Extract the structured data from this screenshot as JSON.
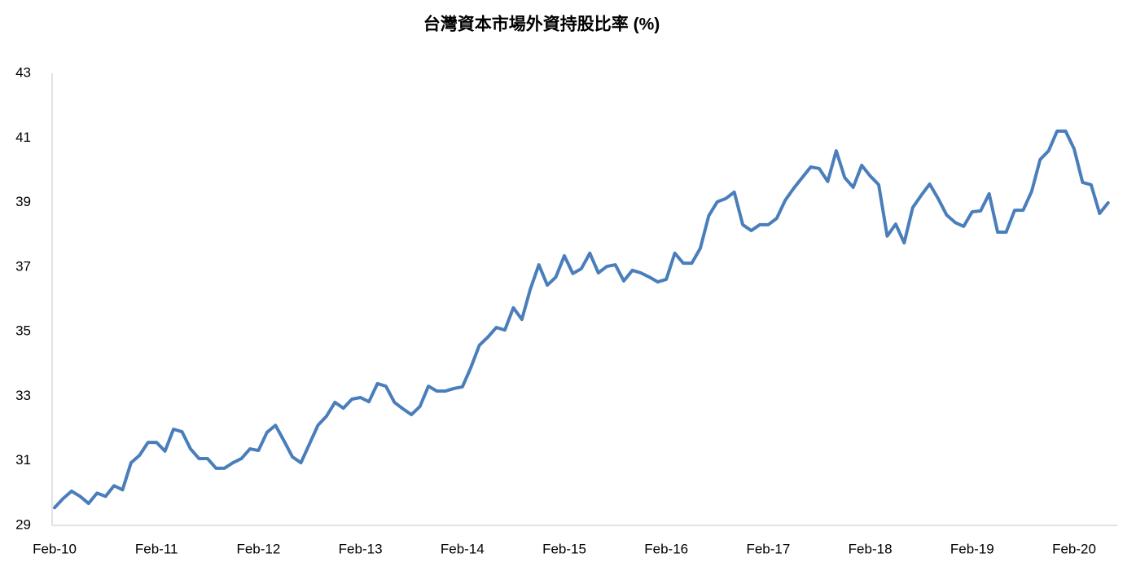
{
  "chart_data": {
    "type": "line",
    "title": "台灣資本市場外資持股比率 (%)",
    "categories": [
      "Feb-10",
      null,
      null,
      null,
      null,
      null,
      null,
      null,
      null,
      null,
      null,
      null,
      "Feb-11",
      null,
      null,
      null,
      null,
      null,
      null,
      null,
      null,
      null,
      null,
      null,
      "Feb-12",
      null,
      null,
      null,
      null,
      null,
      null,
      null,
      null,
      null,
      null,
      null,
      "Feb-13",
      null,
      null,
      null,
      null,
      null,
      null,
      null,
      null,
      null,
      null,
      null,
      "Feb-14",
      null,
      null,
      null,
      null,
      null,
      null,
      null,
      null,
      null,
      null,
      null,
      "Feb-15",
      null,
      null,
      null,
      null,
      null,
      null,
      null,
      null,
      null,
      null,
      null,
      "Feb-16",
      null,
      null,
      null,
      null,
      null,
      null,
      null,
      null,
      null,
      null,
      null,
      "Feb-17",
      null,
      null,
      null,
      null,
      null,
      null,
      null,
      null,
      null,
      null,
      null,
      "Feb-18",
      null,
      null,
      null,
      null,
      null,
      null,
      null,
      null,
      null,
      null,
      null,
      "Feb-19",
      null,
      null,
      null,
      null,
      null,
      null,
      null,
      null,
      null,
      null,
      null,
      "Feb-20",
      null,
      null,
      null,
      null
    ],
    "values": [
      29.55,
      29.83,
      30.06,
      29.9,
      29.68,
      30.0,
      29.9,
      30.23,
      30.1,
      30.94,
      31.17,
      31.57,
      31.57,
      31.3,
      31.98,
      31.9,
      31.37,
      31.07,
      31.07,
      30.77,
      30.77,
      30.94,
      31.07,
      31.37,
      31.32,
      31.88,
      32.1,
      31.62,
      31.12,
      30.94,
      31.52,
      32.1,
      32.38,
      32.81,
      32.63,
      32.91,
      32.96,
      32.83,
      33.39,
      33.31,
      32.81,
      32.61,
      32.43,
      32.68,
      33.31,
      33.16,
      33.16,
      33.24,
      33.29,
      33.89,
      34.58,
      34.83,
      35.13,
      35.05,
      35.74,
      35.38,
      36.32,
      37.07,
      36.44,
      36.69,
      37.35,
      36.8,
      36.95,
      37.43,
      36.82,
      37.02,
      37.07,
      36.57,
      36.9,
      36.82,
      36.69,
      36.54,
      36.62,
      37.43,
      37.12,
      37.12,
      37.58,
      38.59,
      39.02,
      39.12,
      39.32,
      38.31,
      38.13,
      38.31,
      38.31,
      38.51,
      39.07,
      39.44,
      39.77,
      40.1,
      40.05,
      39.65,
      40.6,
      39.77,
      39.47,
      40.15,
      39.82,
      39.55,
      37.96,
      38.33,
      37.75,
      38.84,
      39.22,
      39.57,
      39.12,
      38.61,
      38.38,
      38.26,
      38.71,
      38.74,
      39.27,
      38.08,
      38.08,
      38.76,
      38.76,
      39.34,
      40.33,
      40.6,
      41.21,
      41.21,
      40.66,
      39.62,
      39.55,
      38.66,
      38.99
    ],
    "color": "#4a7ebb",
    "ylim": [
      29,
      43
    ],
    "yticks": [
      29,
      31,
      33,
      35,
      37,
      39,
      41,
      43
    ],
    "grid": false
  }
}
